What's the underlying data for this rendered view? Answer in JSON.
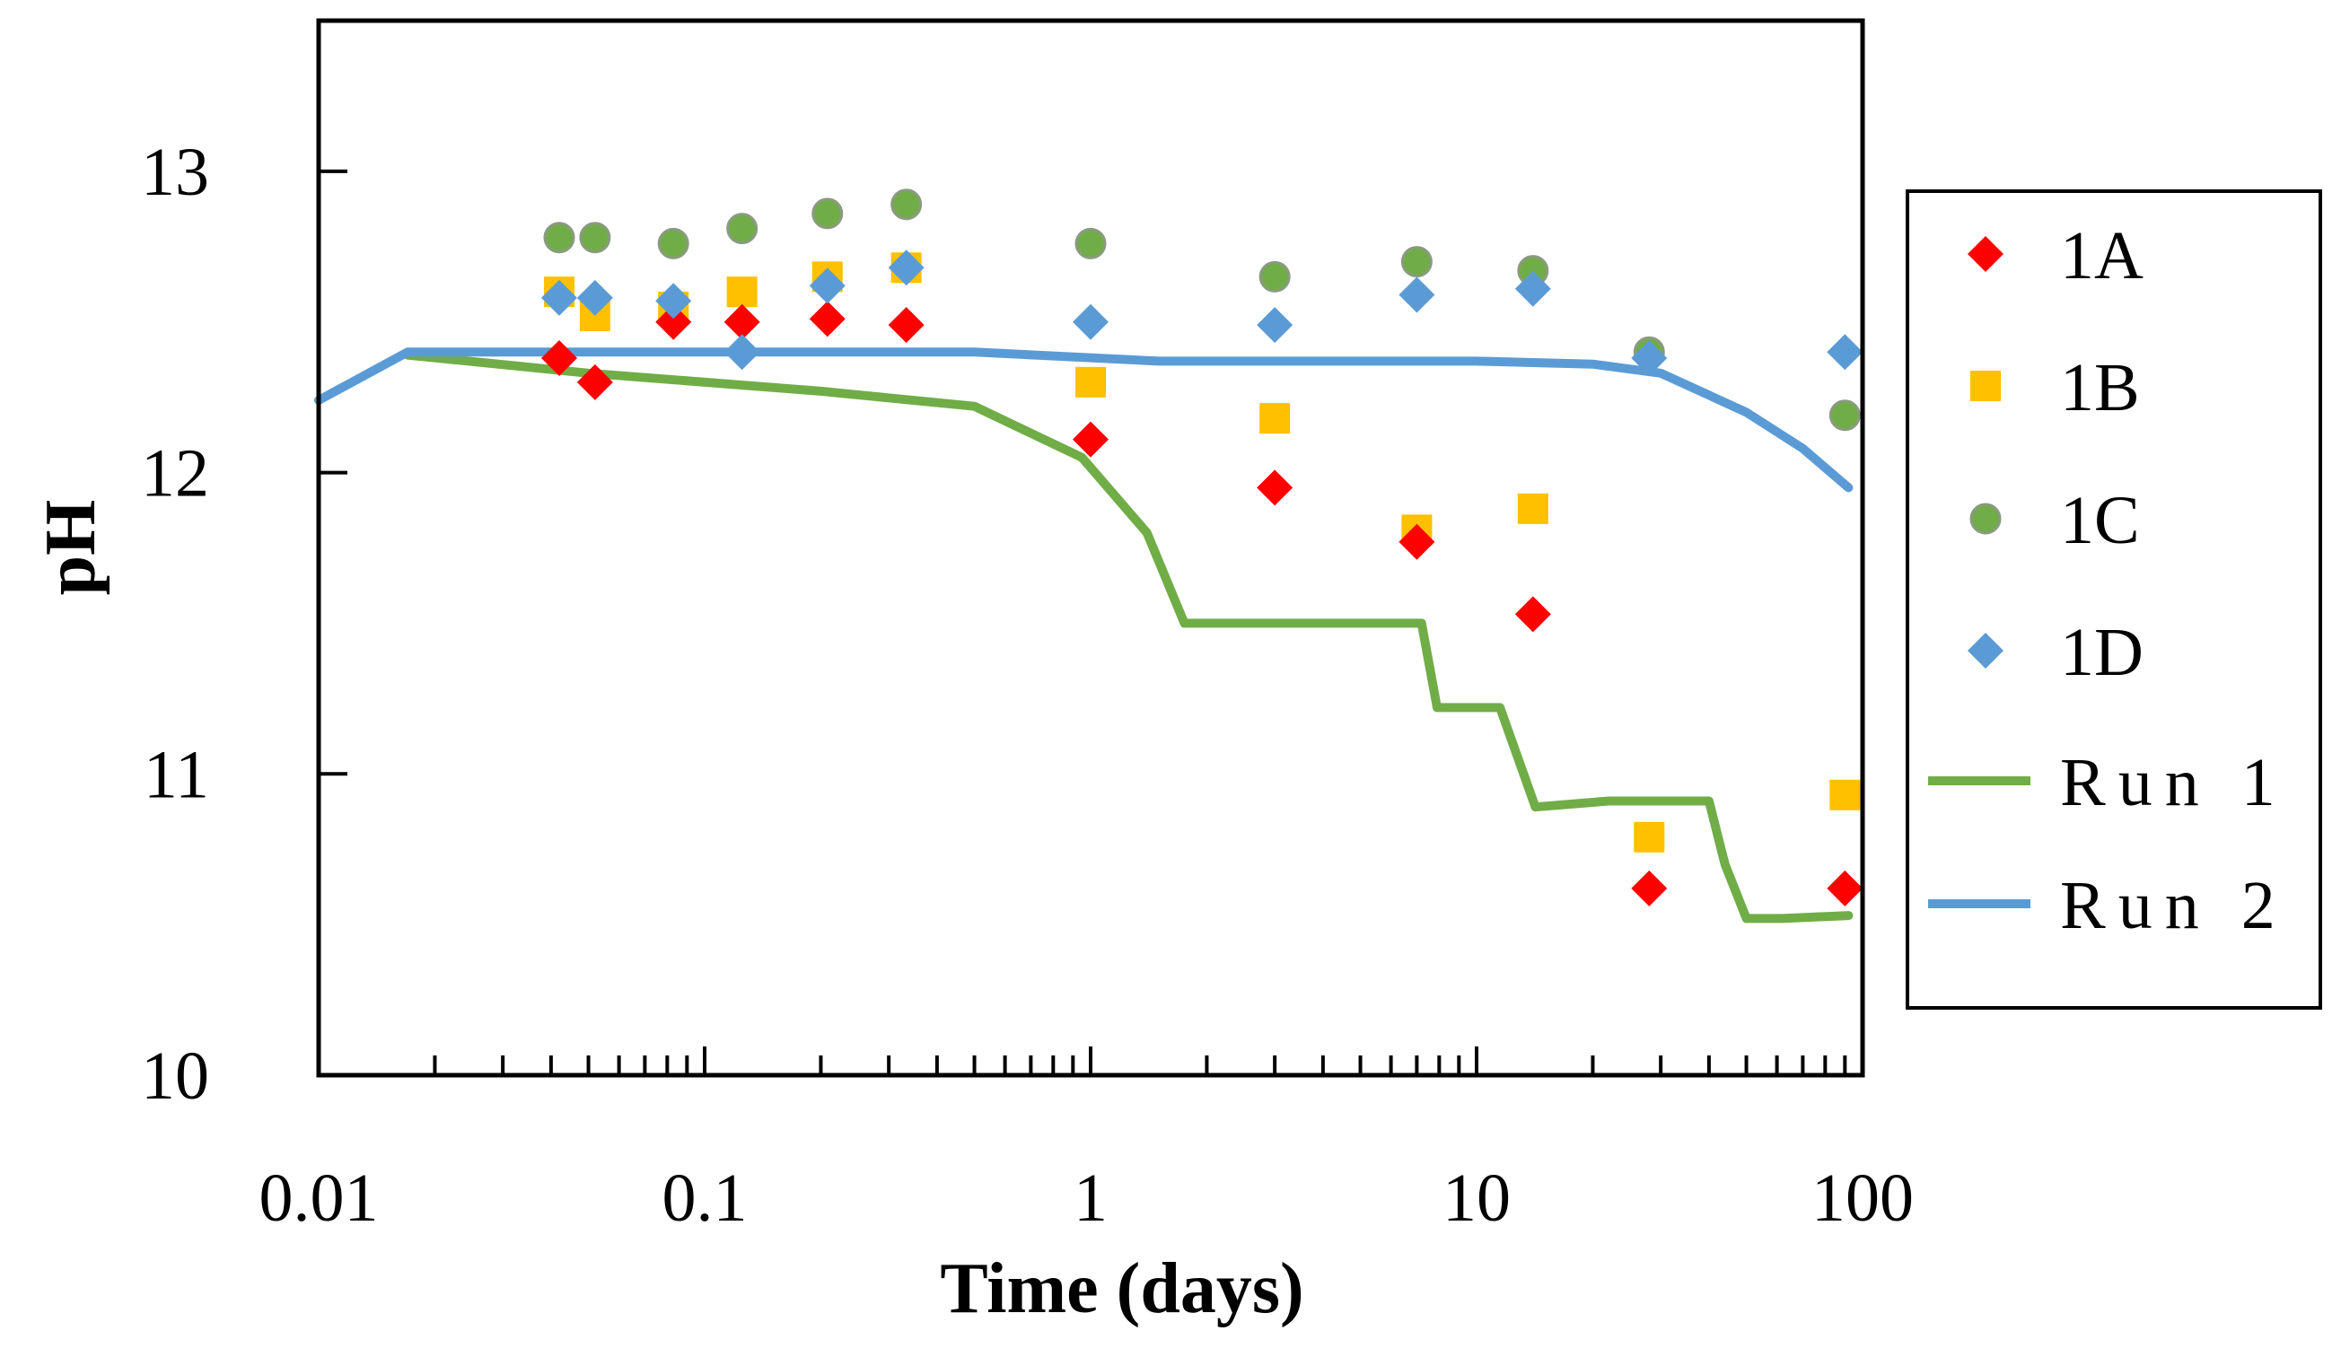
{
  "chart_data": {
    "type": "scatter",
    "title": "",
    "xlabel": "Time (days)",
    "ylabel": "pH",
    "xscale": "log",
    "xlim": [
      0.01,
      100
    ],
    "ylim": [
      10,
      13.5
    ],
    "xticks": [
      0.01,
      0.1,
      1,
      10,
      100
    ],
    "xtick_labels": [
      "0.01",
      "0.1",
      "1",
      "10",
      "100"
    ],
    "yticks": [
      10,
      11,
      12,
      13
    ],
    "ytick_labels": [
      "10",
      "11",
      "12",
      "13"
    ],
    "grid": false,
    "legend_position": "right",
    "series": [
      {
        "name": "1A",
        "kind": "scatter",
        "marker": "diamond",
        "color": "#ff0000",
        "x": [
          0.042,
          0.052,
          0.083,
          0.125,
          0.208,
          0.333,
          1.0,
          3.0,
          7.0,
          14.0,
          28.0,
          90.0
        ],
        "y": [
          12.38,
          12.3,
          12.5,
          12.5,
          12.51,
          12.49,
          12.11,
          11.95,
          11.77,
          11.53,
          10.62,
          10.62
        ]
      },
      {
        "name": "1B",
        "kind": "scatter",
        "marker": "square",
        "color": "#ffc000",
        "x": [
          0.042,
          0.052,
          0.083,
          0.125,
          0.208,
          0.333,
          1.0,
          3.0,
          7.0,
          14.0,
          28.0,
          90.0
        ],
        "y": [
          12.6,
          12.52,
          12.55,
          12.6,
          12.65,
          12.68,
          12.3,
          12.18,
          11.81,
          11.88,
          10.79,
          10.93
        ]
      },
      {
        "name": "1C",
        "kind": "scatter",
        "marker": "circle",
        "color": "#70ad47",
        "x": [
          0.042,
          0.052,
          0.083,
          0.125,
          0.208,
          0.333,
          1.0,
          3.0,
          7.0,
          14.0,
          28.0,
          90.0
        ],
        "y": [
          12.78,
          12.78,
          12.76,
          12.81,
          12.86,
          12.89,
          12.76,
          12.65,
          12.7,
          12.67,
          12.4,
          12.19
        ]
      },
      {
        "name": "1D",
        "kind": "scatter",
        "marker": "diamond",
        "color": "#5b9bd5",
        "x": [
          0.042,
          0.052,
          0.083,
          0.125,
          0.208,
          0.333,
          1.0,
          3.0,
          7.0,
          14.0,
          28.0,
          90.0
        ],
        "y": [
          12.58,
          12.58,
          12.57,
          12.4,
          12.62,
          12.68,
          12.5,
          12.49,
          12.59,
          12.61,
          12.38,
          12.4
        ]
      },
      {
        "name": "Run 1",
        "kind": "line",
        "color": "#70ad47",
        "x": [
          0.017,
          0.05,
          0.2,
          0.5,
          0.95,
          1.4,
          1.75,
          3.0,
          7.2,
          7.9,
          11.5,
          14.2,
          22.0,
          40.0,
          44.0,
          50.0,
          62.0,
          92.0
        ],
        "y": [
          12.39,
          12.33,
          12.27,
          12.22,
          12.05,
          11.8,
          11.5,
          11.5,
          11.5,
          11.22,
          11.22,
          10.89,
          10.91,
          10.91,
          10.7,
          10.52,
          10.52,
          10.53
        ]
      },
      {
        "name": "Run 2",
        "kind": "line",
        "color": "#5b9bd5",
        "x": [
          0.01,
          0.017,
          0.5,
          1.5,
          10.0,
          20.0,
          30.0,
          50.0,
          70.0,
          92.0
        ],
        "y": [
          12.24,
          12.4,
          12.4,
          12.37,
          12.37,
          12.36,
          12.33,
          12.2,
          12.08,
          11.95
        ]
      }
    ]
  }
}
